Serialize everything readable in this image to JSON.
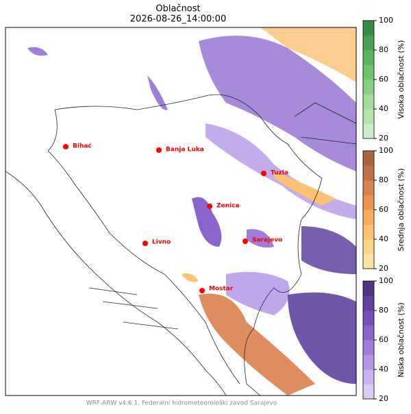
{
  "title": "Oblačnost",
  "subtitle": "2026-08-26_14:00:00",
  "cities": [
    {
      "name": "Bihać"
    },
    {
      "name": "Banja Luka"
    },
    {
      "name": "Tuzla"
    },
    {
      "name": "Zenica"
    },
    {
      "name": "Livno"
    },
    {
      "name": "Sarajevo"
    },
    {
      "name": "Mostar"
    }
  ],
  "colorbars": [
    {
      "label": "Visoka oblačnost (%)",
      "lim": [
        20,
        100
      ],
      "ticks": [
        20,
        40,
        60,
        80,
        100
      ],
      "colors": [
        "#c7efc3",
        "#b0e4aa",
        "#a1dc9a",
        "#86cf82",
        "#6fc36d",
        "#5cb35d",
        "#4da052",
        "#3a8a45"
      ]
    },
    {
      "label": "Srednja oblačnost (%)",
      "lim": [
        20,
        100
      ],
      "ticks": [
        20,
        40,
        60,
        80,
        100
      ],
      "colors": [
        "#fde3a2",
        "#fdd38a",
        "#fcc173",
        "#f8ab5e",
        "#eb9352",
        "#d9814d",
        "#c2704a",
        "#a9653f"
      ]
    },
    {
      "label": "Niska oblačnost (%)",
      "lim": [
        20,
        100
      ],
      "ticks": [
        20,
        40,
        60,
        80,
        100
      ],
      "colors": [
        "#dccbf5",
        "#c9b1ef",
        "#b596e6",
        "#a07cdb",
        "#8b63cd",
        "#7550b8",
        "#62429f",
        "#533586"
      ]
    }
  ],
  "footer": "WRF-ARW v4.6.1, Federalni hidrometeorološki zavod Sarajevo"
}
